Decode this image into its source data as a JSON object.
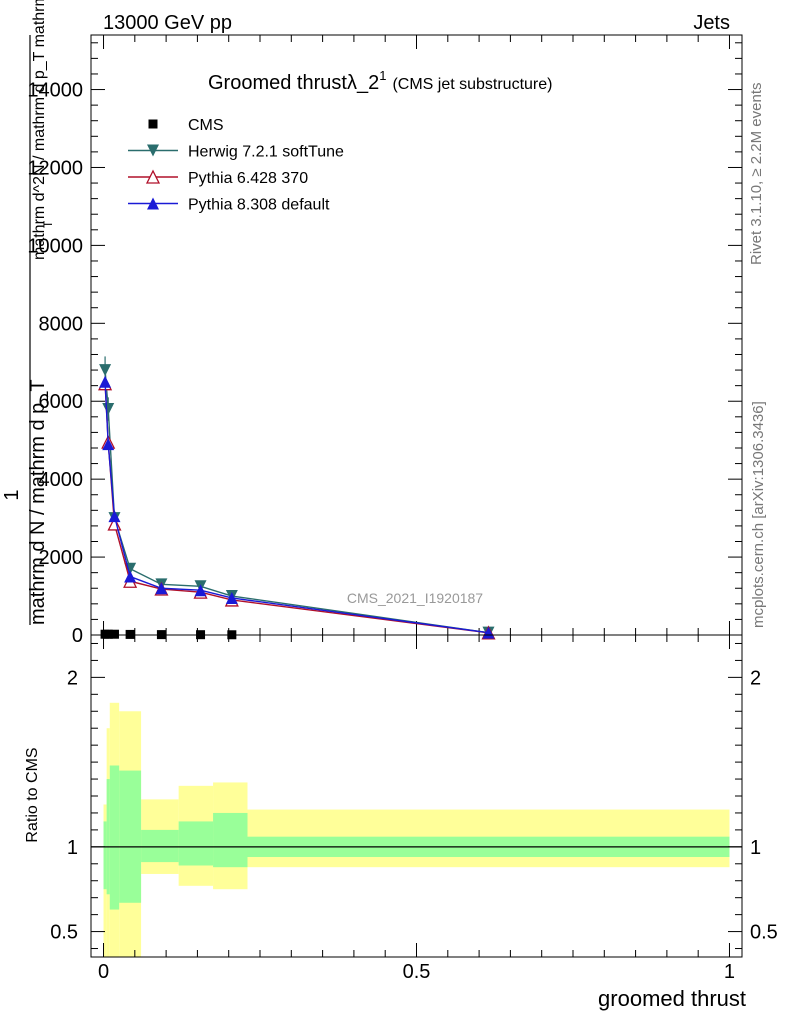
{
  "header": {
    "left": "13000 GeV pp",
    "right": "Jets"
  },
  "side_labels": {
    "rivet": "Rivet 3.1.10, ≥ 2.2M events",
    "mcplots": "mcplots.cern.ch [arXiv:1306.3436]"
  },
  "watermark": "CMS_2021_I1920187",
  "colors": {
    "cms": "#000000",
    "herwig": "#2a6d6d",
    "pythia6": "#b0102a",
    "pythia8": "#1a1ad6",
    "band_outer": "#ffff99",
    "band_inner": "#99ff99"
  },
  "chart_data": [
    {
      "type": "line",
      "title_main": "Groomed thrust",
      "title_symbol": "λ_2",
      "title_sup": "1",
      "title_sub": "(CMS jet substructure)",
      "ylabel_top": "1",
      "ylabel_mid": "mathrm d N / mathrm d p_T",
      "ylabel_right": "mathrm d^2N / mathrm d p_T mathrm d lambda",
      "ylabel_sub": "T",
      "xlim": [
        -0.02,
        1.02
      ],
      "ylim": [
        0,
        15400
      ],
      "yticks": [
        {
          "v": 0,
          "label": "0"
        },
        {
          "v": 2000,
          "label": "2000"
        },
        {
          "v": 4000,
          "label": "4000"
        },
        {
          "v": 6000,
          "label": "6000"
        },
        {
          "v": 8000,
          "label": "8000"
        },
        {
          "v": 10000,
          "label": "10000"
        },
        {
          "v": 12000,
          "label": "12000"
        },
        {
          "v": 14000,
          "label": "14000"
        }
      ],
      "legend_position": "top-left",
      "series": [
        {
          "name": "CMS",
          "marker": "square",
          "x": [
            0.0025,
            0.0075,
            0.0175,
            0.0425,
            0.0925,
            0.155,
            0.205
          ],
          "y": [
            20,
            20,
            20,
            15,
            10,
            8,
            6
          ]
        },
        {
          "name": "Herwig 7.2.1 softTune",
          "marker": "triangle-down",
          "x": [
            0.0025,
            0.0075,
            0.0175,
            0.0425,
            0.0925,
            0.155,
            0.205,
            0.615
          ],
          "y": [
            6800,
            5800,
            3000,
            1700,
            1300,
            1250,
            1000,
            60
          ],
          "yerr": [
            350,
            300,
            150,
            80,
            60,
            60,
            50,
            10
          ]
        },
        {
          "name": "Pythia 6.428 370",
          "marker": "triangle-up-open",
          "x": [
            0.0025,
            0.0075,
            0.0175,
            0.0425,
            0.0925,
            0.155,
            0.205,
            0.615
          ],
          "y": [
            6450,
            4950,
            2850,
            1380,
            1180,
            1100,
            900,
            55
          ]
        },
        {
          "name": "Pythia 8.308 default",
          "marker": "triangle-up",
          "x": [
            0.0025,
            0.0075,
            0.0175,
            0.0425,
            0.0925,
            0.155,
            0.205,
            0.615
          ],
          "y": [
            6500,
            4900,
            3050,
            1500,
            1200,
            1150,
            950,
            60
          ]
        }
      ]
    },
    {
      "type": "area",
      "ylabel": "Ratio to CMS",
      "xlabel": "groomed thrust",
      "xlim": [
        -0.02,
        1.02
      ],
      "ylim": [
        0.35,
        2.25
      ],
      "xticks": [
        {
          "v": 0,
          "label": "0"
        },
        {
          "v": 0.5,
          "label": "0.5"
        },
        {
          "v": 1,
          "label": "1"
        }
      ],
      "yticks": [
        {
          "v": 0.5,
          "label": "0.5"
        },
        {
          "v": 1,
          "label": "1"
        },
        {
          "v": 2,
          "label": "2"
        }
      ],
      "bins": [
        {
          "lo": 0.0,
          "hi": 0.005,
          "outer_lo": 0.35,
          "outer_hi": 1.25,
          "inner_lo": 0.75,
          "inner_hi": 1.15
        },
        {
          "lo": 0.005,
          "hi": 0.01,
          "outer_lo": 0.35,
          "outer_hi": 1.7,
          "inner_lo": 0.72,
          "inner_hi": 1.4
        },
        {
          "lo": 0.01,
          "hi": 0.025,
          "outer_lo": 0.35,
          "outer_hi": 1.85,
          "inner_lo": 0.63,
          "inner_hi": 1.48
        },
        {
          "lo": 0.025,
          "hi": 0.06,
          "outer_lo": 0.35,
          "outer_hi": 1.8,
          "inner_lo": 0.67,
          "inner_hi": 1.45
        },
        {
          "lo": 0.06,
          "hi": 0.12,
          "outer_lo": 0.84,
          "outer_hi": 1.28,
          "inner_lo": 0.91,
          "inner_hi": 1.1
        },
        {
          "lo": 0.12,
          "hi": 0.175,
          "outer_lo": 0.77,
          "outer_hi": 1.36,
          "inner_lo": 0.89,
          "inner_hi": 1.15
        },
        {
          "lo": 0.175,
          "hi": 0.23,
          "outer_lo": 0.75,
          "outer_hi": 1.38,
          "inner_lo": 0.88,
          "inner_hi": 1.2
        },
        {
          "lo": 0.23,
          "hi": 1.0,
          "outer_lo": 0.88,
          "outer_hi": 1.22,
          "inner_lo": 0.94,
          "inner_hi": 1.06
        }
      ]
    }
  ]
}
